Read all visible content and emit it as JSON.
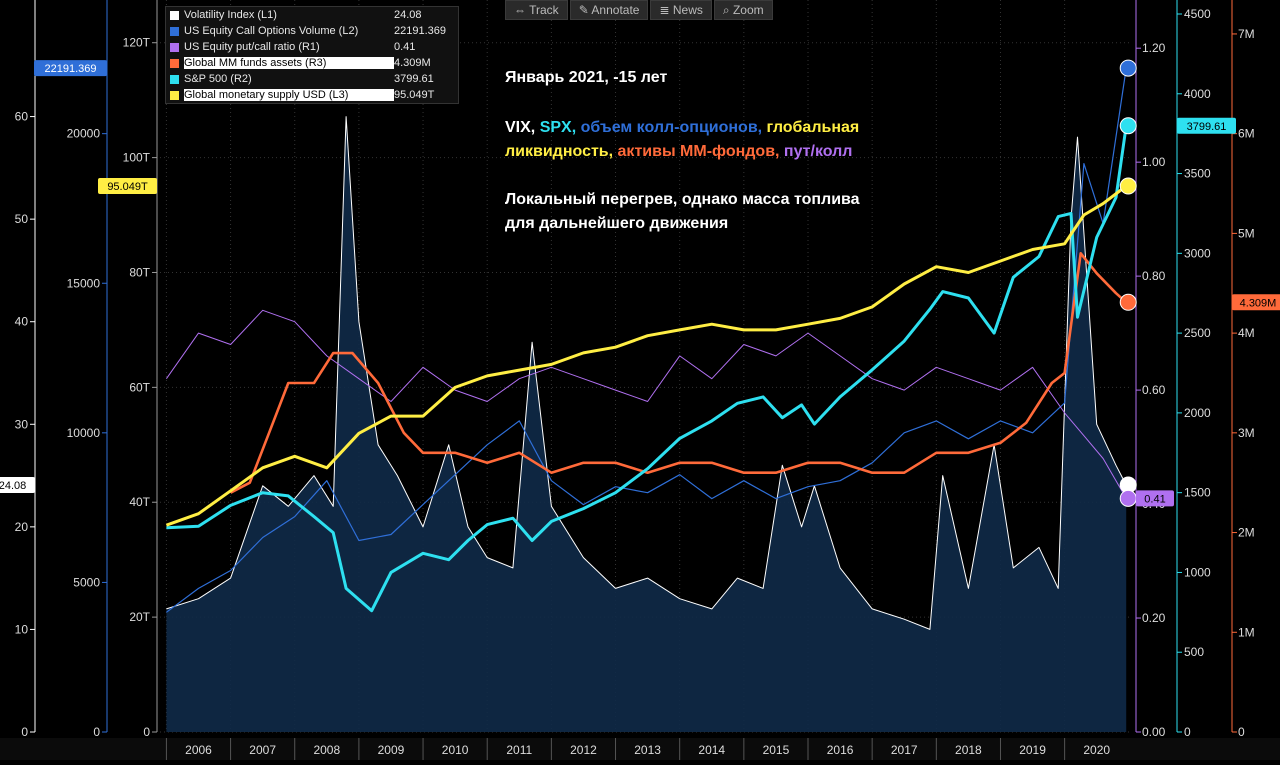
{
  "toolbar": {
    "track_label": "Track",
    "annotate_label": "Annotate",
    "news_label": "News",
    "zoom_label": "Zoom"
  },
  "legend": [
    {
      "name": "Volatility Index (L1)",
      "value": "24.08",
      "color": "#ffffff"
    },
    {
      "name": "US Equity Call Options Volume (L2)",
      "value": "22191.369",
      "color": "#2f6fd8"
    },
    {
      "name": "US Equity put/call ratio (R1)",
      "value": "0.41",
      "color": "#b070f0"
    },
    {
      "name": "Global MM funds assets (R3)",
      "value": "4.309M",
      "color": "#ff6a3a"
    },
    {
      "name": "S&P 500 (R2)",
      "value": "3799.61",
      "color": "#2ee0f0"
    },
    {
      "name": "Global monetary supply USD (L3)",
      "value": "95.049T",
      "color": "#ffee44"
    }
  ],
  "annotation": {
    "title": "Январь 2021, -15 лет",
    "line2": [
      {
        "text": "VIX, ",
        "color": "#ffffff"
      },
      {
        "text": "SPX, ",
        "color": "#2ee0f0"
      },
      {
        "text": "объем колл-опционов, ",
        "color": "#2f6fd8"
      },
      {
        "text": "глобальная",
        "color": "#ffee44"
      }
    ],
    "line3": [
      {
        "text": "ликвидность, ",
        "color": "#ffee44"
      },
      {
        "text": "активы ММ-фондов, ",
        "color": "#ff6a3a"
      },
      {
        "text": "пут/колл",
        "color": "#b070f0"
      }
    ],
    "line4": "Локальный перегрев, однако масса топлива",
    "line5": "для дальнейшего движения"
  },
  "chart_data": {
    "type": "line",
    "x_labels": [
      "2006",
      "2007",
      "2008",
      "2009",
      "2010",
      "2011",
      "2012",
      "2013",
      "2014",
      "2015",
      "2016",
      "2017",
      "2018",
      "2019",
      "2020"
    ],
    "axes": {
      "vix_L1": {
        "range": [
          0,
          70
        ],
        "ticks": [
          0,
          10,
          20,
          30,
          40,
          50,
          60
        ],
        "color": "#ffffff",
        "current_label": "24.08"
      },
      "call_volume_L2": {
        "range": [
          0,
          24000
        ],
        "ticks": [
          0,
          5000,
          10000,
          15000,
          20000
        ],
        "color": "#2f6fd8",
        "current_label": "22191.369"
      },
      "money_supply_L3": {
        "range": [
          0,
          125
        ],
        "ticks": [
          "0",
          "20T",
          "40T",
          "60T",
          "80T",
          "100T",
          "120T"
        ],
        "color": "#ffee44",
        "current_label": "95.049T"
      },
      "put_call_R1": {
        "range": [
          0,
          1.26
        ],
        "ticks": [
          "0.00",
          "0.20",
          "0.40",
          "0.60",
          "0.80",
          "1.00",
          "1.20"
        ],
        "color": "#b070f0",
        "current_label": "0.41"
      },
      "spx_R2": {
        "range": [
          0,
          4500
        ],
        "ticks": [
          0,
          500,
          1000,
          1500,
          2000,
          2500,
          3000,
          3500,
          4000,
          4500
        ],
        "color": "#2ee0f0",
        "current_label": "3799.61"
      },
      "mm_funds_R3": {
        "range": [
          0,
          7.2
        ],
        "ticks": [
          "0",
          "1M",
          "2M",
          "3M",
          "4M",
          "5M",
          "6M",
          "7M"
        ],
        "color": "#ff6a3a",
        "current_label": "4.309M"
      }
    },
    "series": [
      {
        "name": "Volatility Index (L1)",
        "axis": "vix_L1",
        "color": "#ffffff",
        "x": [
          2006.0,
          2006.5,
          2007.0,
          2007.5,
          2007.9,
          2008.3,
          2008.6,
          2008.8,
          2009.0,
          2009.3,
          2009.6,
          2010.0,
          2010.4,
          2010.7,
          2011.0,
          2011.4,
          2011.7,
          2012.0,
          2012.5,
          2013.0,
          2013.5,
          2014.0,
          2014.5,
          2014.9,
          2015.3,
          2015.6,
          2015.9,
          2016.1,
          2016.5,
          2017.0,
          2017.5,
          2017.9,
          2018.1,
          2018.5,
          2018.9,
          2019.2,
          2019.6,
          2019.9,
          2020.1,
          2020.2,
          2020.5,
          2020.8,
          2020.96
        ],
        "y": [
          12,
          13,
          15,
          24,
          22,
          25,
          22,
          60,
          40,
          28,
          25,
          20,
          28,
          20,
          17,
          16,
          38,
          22,
          17,
          14,
          15,
          13,
          12,
          15,
          14,
          26,
          20,
          24,
          16,
          12,
          11,
          10,
          25,
          14,
          28,
          16,
          18,
          14,
          50,
          58,
          30,
          26,
          24.08
        ]
      },
      {
        "name": "US Equity Call Options Volume (L2)",
        "axis": "call_volume_L2",
        "color": "#2f6fd8",
        "x": [
          2006.0,
          2006.5,
          2007.0,
          2007.5,
          2008.0,
          2008.5,
          2009.0,
          2009.5,
          2010.0,
          2010.5,
          2011.0,
          2011.5,
          2012.0,
          2012.5,
          2013.0,
          2013.5,
          2014.0,
          2014.5,
          2015.0,
          2015.5,
          2016.0,
          2016.5,
          2017.0,
          2017.5,
          2018.0,
          2018.5,
          2019.0,
          2019.5,
          2020.0,
          2020.3,
          2020.6,
          2020.96
        ],
        "y": [
          4000,
          4800,
          5400,
          6500,
          7200,
          8400,
          6400,
          6600,
          7600,
          8600,
          9600,
          10400,
          8400,
          7600,
          8200,
          8000,
          8600,
          7800,
          8400,
          7800,
          8200,
          8400,
          9000,
          10000,
          10400,
          9800,
          10400,
          10000,
          11000,
          19000,
          17000,
          22191.369
        ]
      },
      {
        "name": "US Equity put/call ratio (R1)",
        "axis": "put_call_R1",
        "color": "#b070f0",
        "x": [
          2006.0,
          2006.5,
          2007.0,
          2007.5,
          2008.0,
          2008.5,
          2009.0,
          2009.5,
          2010.0,
          2010.5,
          2011.0,
          2011.5,
          2012.0,
          2012.5,
          2013.0,
          2013.5,
          2014.0,
          2014.5,
          2015.0,
          2015.5,
          2016.0,
          2016.5,
          2017.0,
          2017.5,
          2018.0,
          2018.5,
          2019.0,
          2019.5,
          2020.0,
          2020.3,
          2020.6,
          2020.96
        ],
        "y": [
          0.62,
          0.7,
          0.68,
          0.74,
          0.72,
          0.66,
          0.62,
          0.58,
          0.64,
          0.6,
          0.58,
          0.62,
          0.64,
          0.62,
          0.6,
          0.58,
          0.66,
          0.62,
          0.68,
          0.66,
          0.7,
          0.66,
          0.62,
          0.6,
          0.64,
          0.62,
          0.6,
          0.64,
          0.56,
          0.52,
          0.48,
          0.41
        ]
      },
      {
        "name": "Global MM funds assets (R3)",
        "axis": "mm_funds_R3",
        "color": "#ff6a3a",
        "x": [
          2007.0,
          2007.3,
          2007.6,
          2007.9,
          2008.3,
          2008.6,
          2008.9,
          2009.3,
          2009.7,
          2010.0,
          2010.5,
          2011.0,
          2011.5,
          2012.0,
          2012.5,
          2013.0,
          2013.5,
          2014.0,
          2014.5,
          2015.0,
          2015.5,
          2016.0,
          2016.5,
          2017.0,
          2017.5,
          2018.0,
          2018.5,
          2019.0,
          2019.4,
          2019.8,
          2020.0,
          2020.25,
          2020.5,
          2020.8,
          2020.96
        ],
        "y": [
          2.4,
          2.5,
          3.0,
          3.5,
          3.5,
          3.8,
          3.8,
          3.5,
          3.0,
          2.8,
          2.8,
          2.7,
          2.8,
          2.6,
          2.7,
          2.7,
          2.6,
          2.7,
          2.7,
          2.6,
          2.6,
          2.7,
          2.7,
          2.6,
          2.6,
          2.8,
          2.8,
          2.9,
          3.1,
          3.5,
          3.6,
          4.8,
          4.6,
          4.4,
          4.309
        ]
      },
      {
        "name": "S&P 500 (R2)",
        "axis": "spx_R2",
        "color": "#2ee0f0",
        "x": [
          2006.0,
          2006.5,
          2007.0,
          2007.5,
          2007.9,
          2008.3,
          2008.6,
          2008.8,
          2009.2,
          2009.5,
          2010.0,
          2010.4,
          2010.7,
          2011.0,
          2011.4,
          2011.7,
          2012.0,
          2012.5,
          2013.0,
          2013.5,
          2014.0,
          2014.5,
          2014.9,
          2015.3,
          2015.6,
          2015.9,
          2016.1,
          2016.5,
          2017.0,
          2017.5,
          2017.9,
          2018.1,
          2018.5,
          2018.9,
          2019.2,
          2019.6,
          2019.9,
          2020.1,
          2020.2,
          2020.5,
          2020.8,
          2020.96
        ],
        "y": [
          1280,
          1290,
          1420,
          1500,
          1480,
          1350,
          1250,
          900,
          760,
          1000,
          1120,
          1080,
          1200,
          1300,
          1340,
          1200,
          1320,
          1400,
          1500,
          1650,
          1840,
          1950,
          2060,
          2100,
          1970,
          2050,
          1930,
          2100,
          2270,
          2450,
          2650,
          2760,
          2720,
          2500,
          2850,
          2980,
          3230,
          3250,
          2600,
          3100,
          3350,
          3799.61
        ]
      },
      {
        "name": "Global monetary supply USD (L3)",
        "axis": "money_supply_L3",
        "color": "#ffee44",
        "x": [
          2006.0,
          2006.5,
          2007.0,
          2007.5,
          2008.0,
          2008.5,
          2009.0,
          2009.5,
          2010.0,
          2010.5,
          2011.0,
          2011.5,
          2012.0,
          2012.5,
          2013.0,
          2013.5,
          2014.0,
          2014.5,
          2015.0,
          2015.5,
          2016.0,
          2016.5,
          2017.0,
          2017.5,
          2018.0,
          2018.5,
          2019.0,
          2019.5,
          2020.0,
          2020.3,
          2020.6,
          2020.96
        ],
        "y": [
          36,
          38,
          42,
          46,
          48,
          46,
          52,
          55,
          55,
          60,
          62,
          63,
          64,
          66,
          67,
          69,
          70,
          71,
          70,
          70,
          71,
          72,
          74,
          78,
          81,
          80,
          82,
          84,
          85,
          90,
          92,
          95.049
        ]
      }
    ]
  }
}
